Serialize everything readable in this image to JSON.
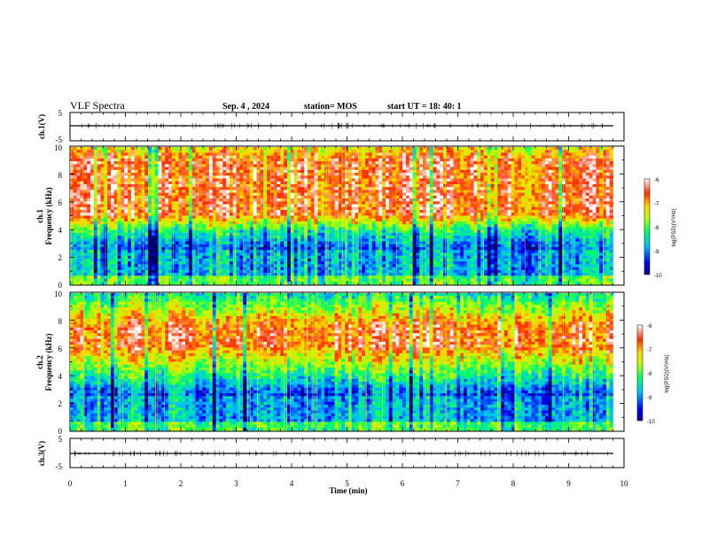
{
  "header": {
    "title": "VLF Spectra",
    "date": "Sep. 4  , 2024",
    "station": "station= MOS",
    "start": "start  UT  =   18: 40: 1"
  },
  "chart_data": [
    {
      "type": "line",
      "ylabel": "ch.1(V)",
      "ylim": [
        -5,
        5
      ],
      "yticks": [
        "5",
        "-5"
      ],
      "series": [
        {
          "values_description_level": 0
        }
      ]
    },
    {
      "type": "heatmap",
      "ylabel_line1": "ch.1",
      "ylabel_line2": "Frequency (kHz)",
      "ylim": [
        0,
        10
      ],
      "yticks": [
        "0",
        "2",
        "4",
        "6",
        "8",
        "10"
      ],
      "intense_band_khz": [
        5,
        9
      ],
      "colorbar": {
        "label": "log(PSD)(V²/Hz)",
        "range": [
          -10,
          -6
        ],
        "ticks": [
          "-6",
          "-7",
          "-8",
          "-9",
          "-10"
        ]
      }
    },
    {
      "type": "heatmap",
      "ylabel_line1": "ch.2",
      "ylabel_line2": "Frequency (kHz)",
      "ylim": [
        0,
        10
      ],
      "yticks": [
        "0",
        "2",
        "4",
        "6",
        "8",
        "10"
      ],
      "intense_band_khz": [
        6,
        7.5
      ],
      "colorbar": {
        "label": "log(PSD)(V²/Hz)",
        "range": [
          -10,
          -6
        ],
        "ticks": [
          "-6",
          "-7",
          "-8",
          "-9",
          "-10"
        ]
      }
    },
    {
      "type": "line",
      "ylabel": "ch.3(V)",
      "ylim": [
        -5,
        5
      ],
      "yticks": [
        "5",
        "-5"
      ],
      "series": [
        {
          "values_description_level": 0
        }
      ]
    }
  ],
  "xaxis": {
    "label": "Time  (min)",
    "xlim": [
      0,
      10
    ],
    "ticks": [
      "0",
      "1",
      "2",
      "3",
      "4",
      "5",
      "6",
      "7",
      "8",
      "9",
      "10"
    ],
    "data_end_min": 9.8
  }
}
